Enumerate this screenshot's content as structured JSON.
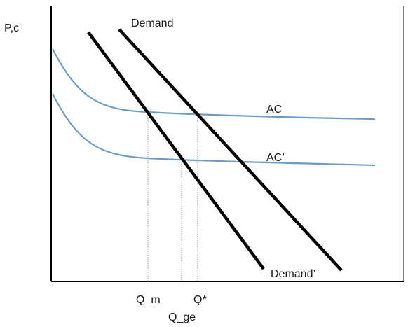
{
  "figure": {
    "y_axis_label": "P,c",
    "curves": {
      "demand": "Demand",
      "demand_prime": "Demand’",
      "ac": "AC",
      "ac_prime": "AC’"
    },
    "quantities": {
      "q_m": "Q_m",
      "q_ge": "Q_ge",
      "q_star": "Q*"
    }
  },
  "colors": {
    "demand": "#000000",
    "average_cost": "#6f9cc4",
    "axis": "#000000",
    "guide": "#9a9a9a"
  }
}
